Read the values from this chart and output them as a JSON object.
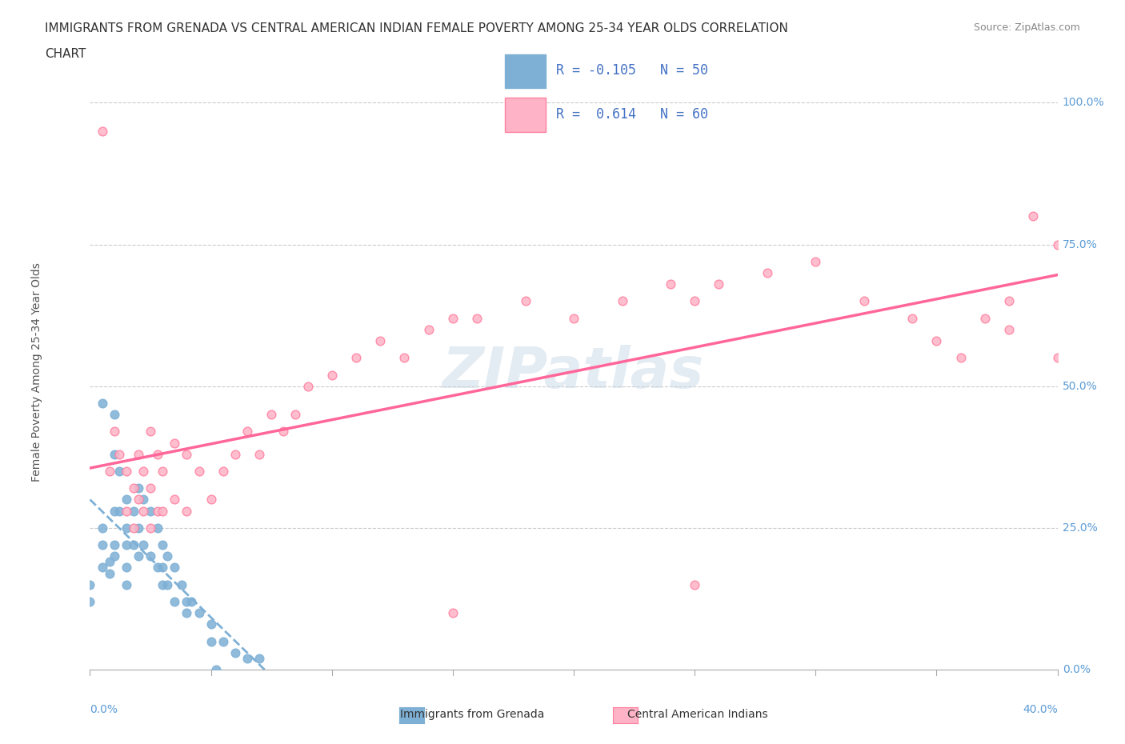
{
  "title_line1": "IMMIGRANTS FROM GRENADA VS CENTRAL AMERICAN INDIAN FEMALE POVERTY AMONG 25-34 YEAR OLDS CORRELATION",
  "title_line2": "CHART",
  "source": "Source: ZipAtlas.com",
  "ylabel_label": "Female Poverty Among 25-34 Year Olds",
  "legend_label1": "Immigrants from Grenada",
  "legend_label2": "Central American Indians",
  "R1": -0.105,
  "N1": 50,
  "R2": 0.614,
  "N2": 60,
  "color_blue": "#7EB0D5",
  "color_pink": "#FFB3C6",
  "color_blue_dark": "#4472C4",
  "color_pink_dark": "#FF80A0",
  "color_trend_blue": "#7EB0D5",
  "color_trend_pink": "#FF6699",
  "xmin": 0.0,
  "xmax": 0.4,
  "ymin": 0.0,
  "ymax": 1.05,
  "scatter_blue_x": [
    0.0,
    0.0,
    0.005,
    0.005,
    0.005,
    0.005,
    0.008,
    0.008,
    0.01,
    0.01,
    0.01,
    0.01,
    0.01,
    0.012,
    0.012,
    0.015,
    0.015,
    0.015,
    0.015,
    0.015,
    0.018,
    0.018,
    0.02,
    0.02,
    0.02,
    0.022,
    0.022,
    0.025,
    0.025,
    0.028,
    0.028,
    0.03,
    0.03,
    0.03,
    0.032,
    0.032,
    0.035,
    0.035,
    0.038,
    0.04,
    0.04,
    0.042,
    0.045,
    0.05,
    0.05,
    0.055,
    0.06,
    0.065,
    0.07,
    0.052
  ],
  "scatter_blue_y": [
    0.12,
    0.15,
    0.47,
    0.25,
    0.22,
    0.18,
    0.19,
    0.17,
    0.45,
    0.38,
    0.28,
    0.22,
    0.2,
    0.35,
    0.28,
    0.3,
    0.25,
    0.22,
    0.18,
    0.15,
    0.28,
    0.22,
    0.32,
    0.25,
    0.2,
    0.3,
    0.22,
    0.28,
    0.2,
    0.25,
    0.18,
    0.22,
    0.18,
    0.15,
    0.2,
    0.15,
    0.18,
    0.12,
    0.15,
    0.12,
    0.1,
    0.12,
    0.1,
    0.08,
    0.05,
    0.05,
    0.03,
    0.02,
    0.02,
    0.0
  ],
  "scatter_pink_x": [
    0.005,
    0.008,
    0.01,
    0.012,
    0.015,
    0.015,
    0.018,
    0.018,
    0.02,
    0.02,
    0.022,
    0.022,
    0.025,
    0.025,
    0.025,
    0.028,
    0.028,
    0.03,
    0.03,
    0.035,
    0.035,
    0.04,
    0.04,
    0.045,
    0.05,
    0.055,
    0.06,
    0.065,
    0.07,
    0.075,
    0.08,
    0.085,
    0.09,
    0.1,
    0.11,
    0.12,
    0.13,
    0.14,
    0.15,
    0.16,
    0.18,
    0.2,
    0.22,
    0.24,
    0.25,
    0.26,
    0.28,
    0.3,
    0.32,
    0.34,
    0.35,
    0.36,
    0.37,
    0.38,
    0.39,
    0.4,
    0.4,
    0.38,
    0.25,
    0.15
  ],
  "scatter_pink_y": [
    0.95,
    0.35,
    0.42,
    0.38,
    0.35,
    0.28,
    0.32,
    0.25,
    0.38,
    0.3,
    0.35,
    0.28,
    0.42,
    0.32,
    0.25,
    0.38,
    0.28,
    0.35,
    0.28,
    0.4,
    0.3,
    0.38,
    0.28,
    0.35,
    0.3,
    0.35,
    0.38,
    0.42,
    0.38,
    0.45,
    0.42,
    0.45,
    0.5,
    0.52,
    0.55,
    0.58,
    0.55,
    0.6,
    0.62,
    0.62,
    0.65,
    0.62,
    0.65,
    0.68,
    0.65,
    0.68,
    0.7,
    0.72,
    0.65,
    0.62,
    0.58,
    0.55,
    0.62,
    0.65,
    0.8,
    0.55,
    0.75,
    0.6,
    0.15,
    0.1
  ]
}
